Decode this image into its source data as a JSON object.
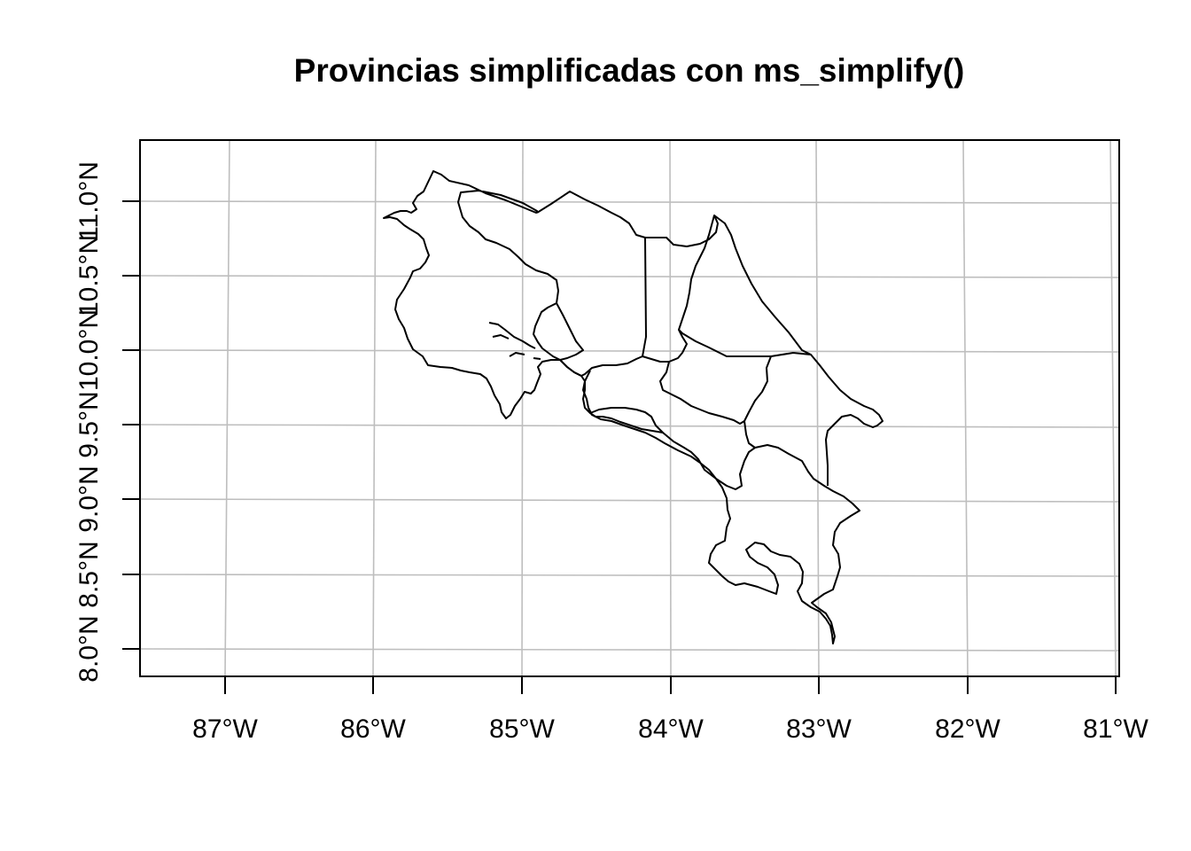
{
  "title": "Provincias simplificadas con ms_simplify()",
  "map": {
    "x_ticks": [
      {
        "value": -87,
        "label": "87°W"
      },
      {
        "value": -86,
        "label": "86°W"
      },
      {
        "value": -85,
        "label": "85°W"
      },
      {
        "value": -84,
        "label": "84°W"
      },
      {
        "value": -83,
        "label": "83°W"
      },
      {
        "value": -82,
        "label": "82°W"
      },
      {
        "value": -81,
        "label": "81°W"
      }
    ],
    "y_ticks": [
      {
        "value": 8.0,
        "label": "8.0°N"
      },
      {
        "value": 8.5,
        "label": "8.5°N"
      },
      {
        "value": 9.0,
        "label": "9.0°N"
      },
      {
        "value": 9.5,
        "label": "9.5°N"
      },
      {
        "value": 10.0,
        "label": "10.0°N"
      },
      {
        "value": 10.5,
        "label": "10.5°N"
      },
      {
        "value": 11.0,
        "label": "11.0°N"
      }
    ],
    "grid": true,
    "colors": {
      "grid": "#bebebe",
      "outline": "#000000",
      "background": "#ffffff"
    }
  }
}
